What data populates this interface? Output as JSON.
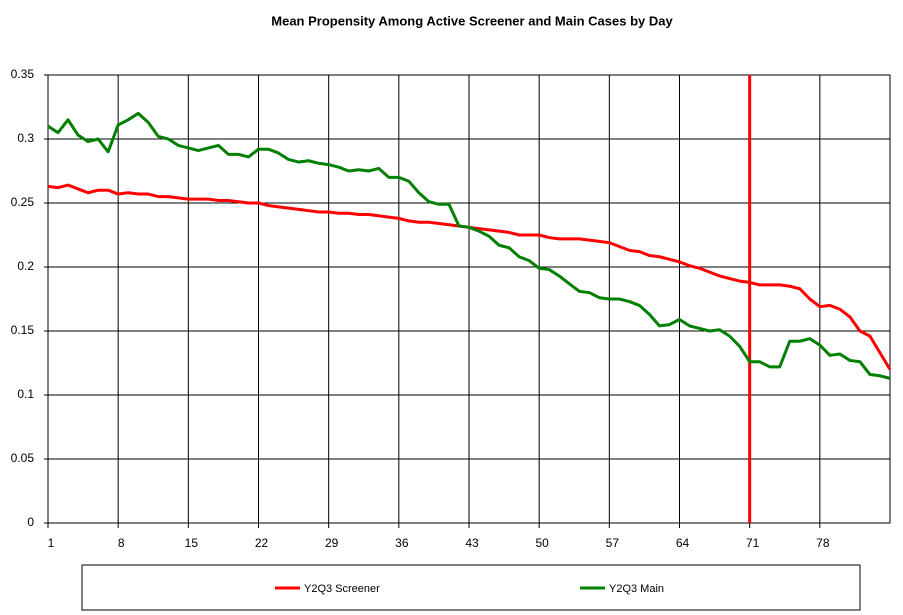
{
  "chart_data": {
    "type": "line",
    "title": "Mean Propensity Among Active Screener and Main Cases by Day",
    "x": [
      1,
      2,
      3,
      4,
      5,
      6,
      7,
      8,
      9,
      10,
      11,
      12,
      13,
      14,
      15,
      16,
      17,
      18,
      19,
      20,
      21,
      22,
      23,
      24,
      25,
      26,
      27,
      28,
      29,
      30,
      31,
      32,
      33,
      34,
      35,
      36,
      37,
      38,
      39,
      40,
      41,
      42,
      43,
      44,
      45,
      46,
      47,
      48,
      49,
      50,
      51,
      52,
      53,
      54,
      55,
      56,
      57,
      58,
      59,
      60,
      61,
      62,
      63,
      64,
      65,
      66,
      67,
      68,
      69,
      70,
      71,
      72,
      73,
      74,
      75,
      76,
      77,
      78,
      79,
      80,
      81,
      82,
      83,
      84,
      85
    ],
    "series": [
      {
        "name": "Y2Q3 Screener",
        "color": "#ff0000",
        "values": [
          0.263,
          0.262,
          0.264,
          0.261,
          0.258,
          0.26,
          0.26,
          0.257,
          0.258,
          0.257,
          0.257,
          0.255,
          0.255,
          0.254,
          0.253,
          0.253,
          0.253,
          0.252,
          0.252,
          0.251,
          0.25,
          0.25,
          0.248,
          0.247,
          0.246,
          0.245,
          0.244,
          0.243,
          0.243,
          0.242,
          0.242,
          0.241,
          0.241,
          0.24,
          0.239,
          0.238,
          0.236,
          0.235,
          0.235,
          0.234,
          0.233,
          0.232,
          0.231,
          0.23,
          0.229,
          0.228,
          0.227,
          0.225,
          0.225,
          0.225,
          0.223,
          0.222,
          0.222,
          0.222,
          0.221,
          0.22,
          0.219,
          0.216,
          0.213,
          0.212,
          0.209,
          0.208,
          0.206,
          0.204,
          0.201,
          0.199,
          0.196,
          0.193,
          0.191,
          0.189,
          0.188,
          0.186,
          0.186,
          0.186,
          0.185,
          0.183,
          0.175,
          0.169,
          0.17,
          0.167,
          0.161,
          0.15,
          0.146,
          0.133,
          0.12
        ]
      },
      {
        "name": "Y2Q3 Main",
        "color": "#008000",
        "values": [
          0.31,
          0.305,
          0.315,
          0.303,
          0.298,
          0.3,
          0.29,
          0.311,
          0.315,
          0.32,
          0.313,
          0.302,
          0.3,
          0.295,
          0.293,
          0.291,
          0.293,
          0.295,
          0.288,
          0.288,
          0.286,
          0.292,
          0.292,
          0.289,
          0.284,
          0.282,
          0.283,
          0.281,
          0.28,
          0.278,
          0.275,
          0.276,
          0.275,
          0.277,
          0.27,
          0.27,
          0.267,
          0.258,
          0.251,
          0.249,
          0.249,
          0.232,
          0.231,
          0.228,
          0.224,
          0.217,
          0.215,
          0.208,
          0.205,
          0.199,
          0.198,
          0.193,
          0.187,
          0.181,
          0.18,
          0.176,
          0.175,
          0.175,
          0.173,
          0.17,
          0.163,
          0.154,
          0.155,
          0.159,
          0.154,
          0.152,
          0.15,
          0.151,
          0.146,
          0.138,
          0.126,
          0.126,
          0.122,
          0.122,
          0.142,
          0.142,
          0.144,
          0.139,
          0.131,
          0.132,
          0.127,
          0.126,
          0.116,
          0.115,
          0.113
        ]
      }
    ],
    "xlim": [
      1,
      85
    ],
    "xticks": [
      1,
      8,
      15,
      22,
      29,
      36,
      43,
      50,
      57,
      64,
      71,
      78
    ],
    "ylim": [
      0,
      0.35
    ],
    "yticks": [
      0,
      0.05,
      0.1,
      0.15,
      0.2,
      0.25,
      0.3,
      0.35
    ],
    "grid": true,
    "vline": {
      "x": 71,
      "color": "#ff0000"
    }
  }
}
